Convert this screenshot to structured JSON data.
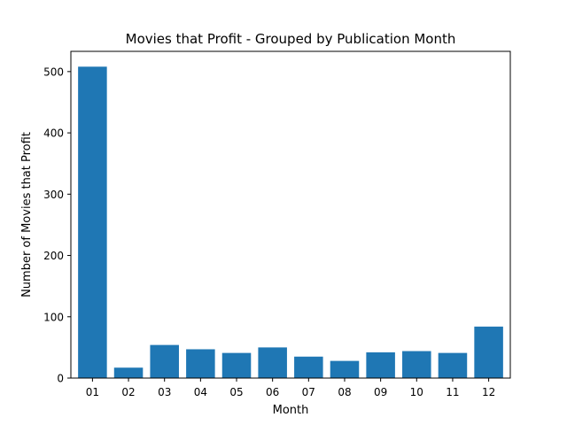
{
  "chart_data": {
    "type": "bar",
    "title": "Movies that Profit - Grouped by Publication Month",
    "xlabel": "Month",
    "ylabel": "Number of Movies that Profit",
    "categories": [
      "01",
      "02",
      "03",
      "04",
      "05",
      "06",
      "07",
      "08",
      "09",
      "10",
      "11",
      "12"
    ],
    "values": [
      508,
      17,
      54,
      47,
      41,
      50,
      35,
      28,
      42,
      44,
      41,
      84
    ],
    "ylim": [
      0,
      533
    ],
    "yticks": [
      0,
      100,
      200,
      300,
      400,
      500
    ],
    "bar_color": "#1f77b4",
    "grid": false,
    "legend": "none"
  }
}
